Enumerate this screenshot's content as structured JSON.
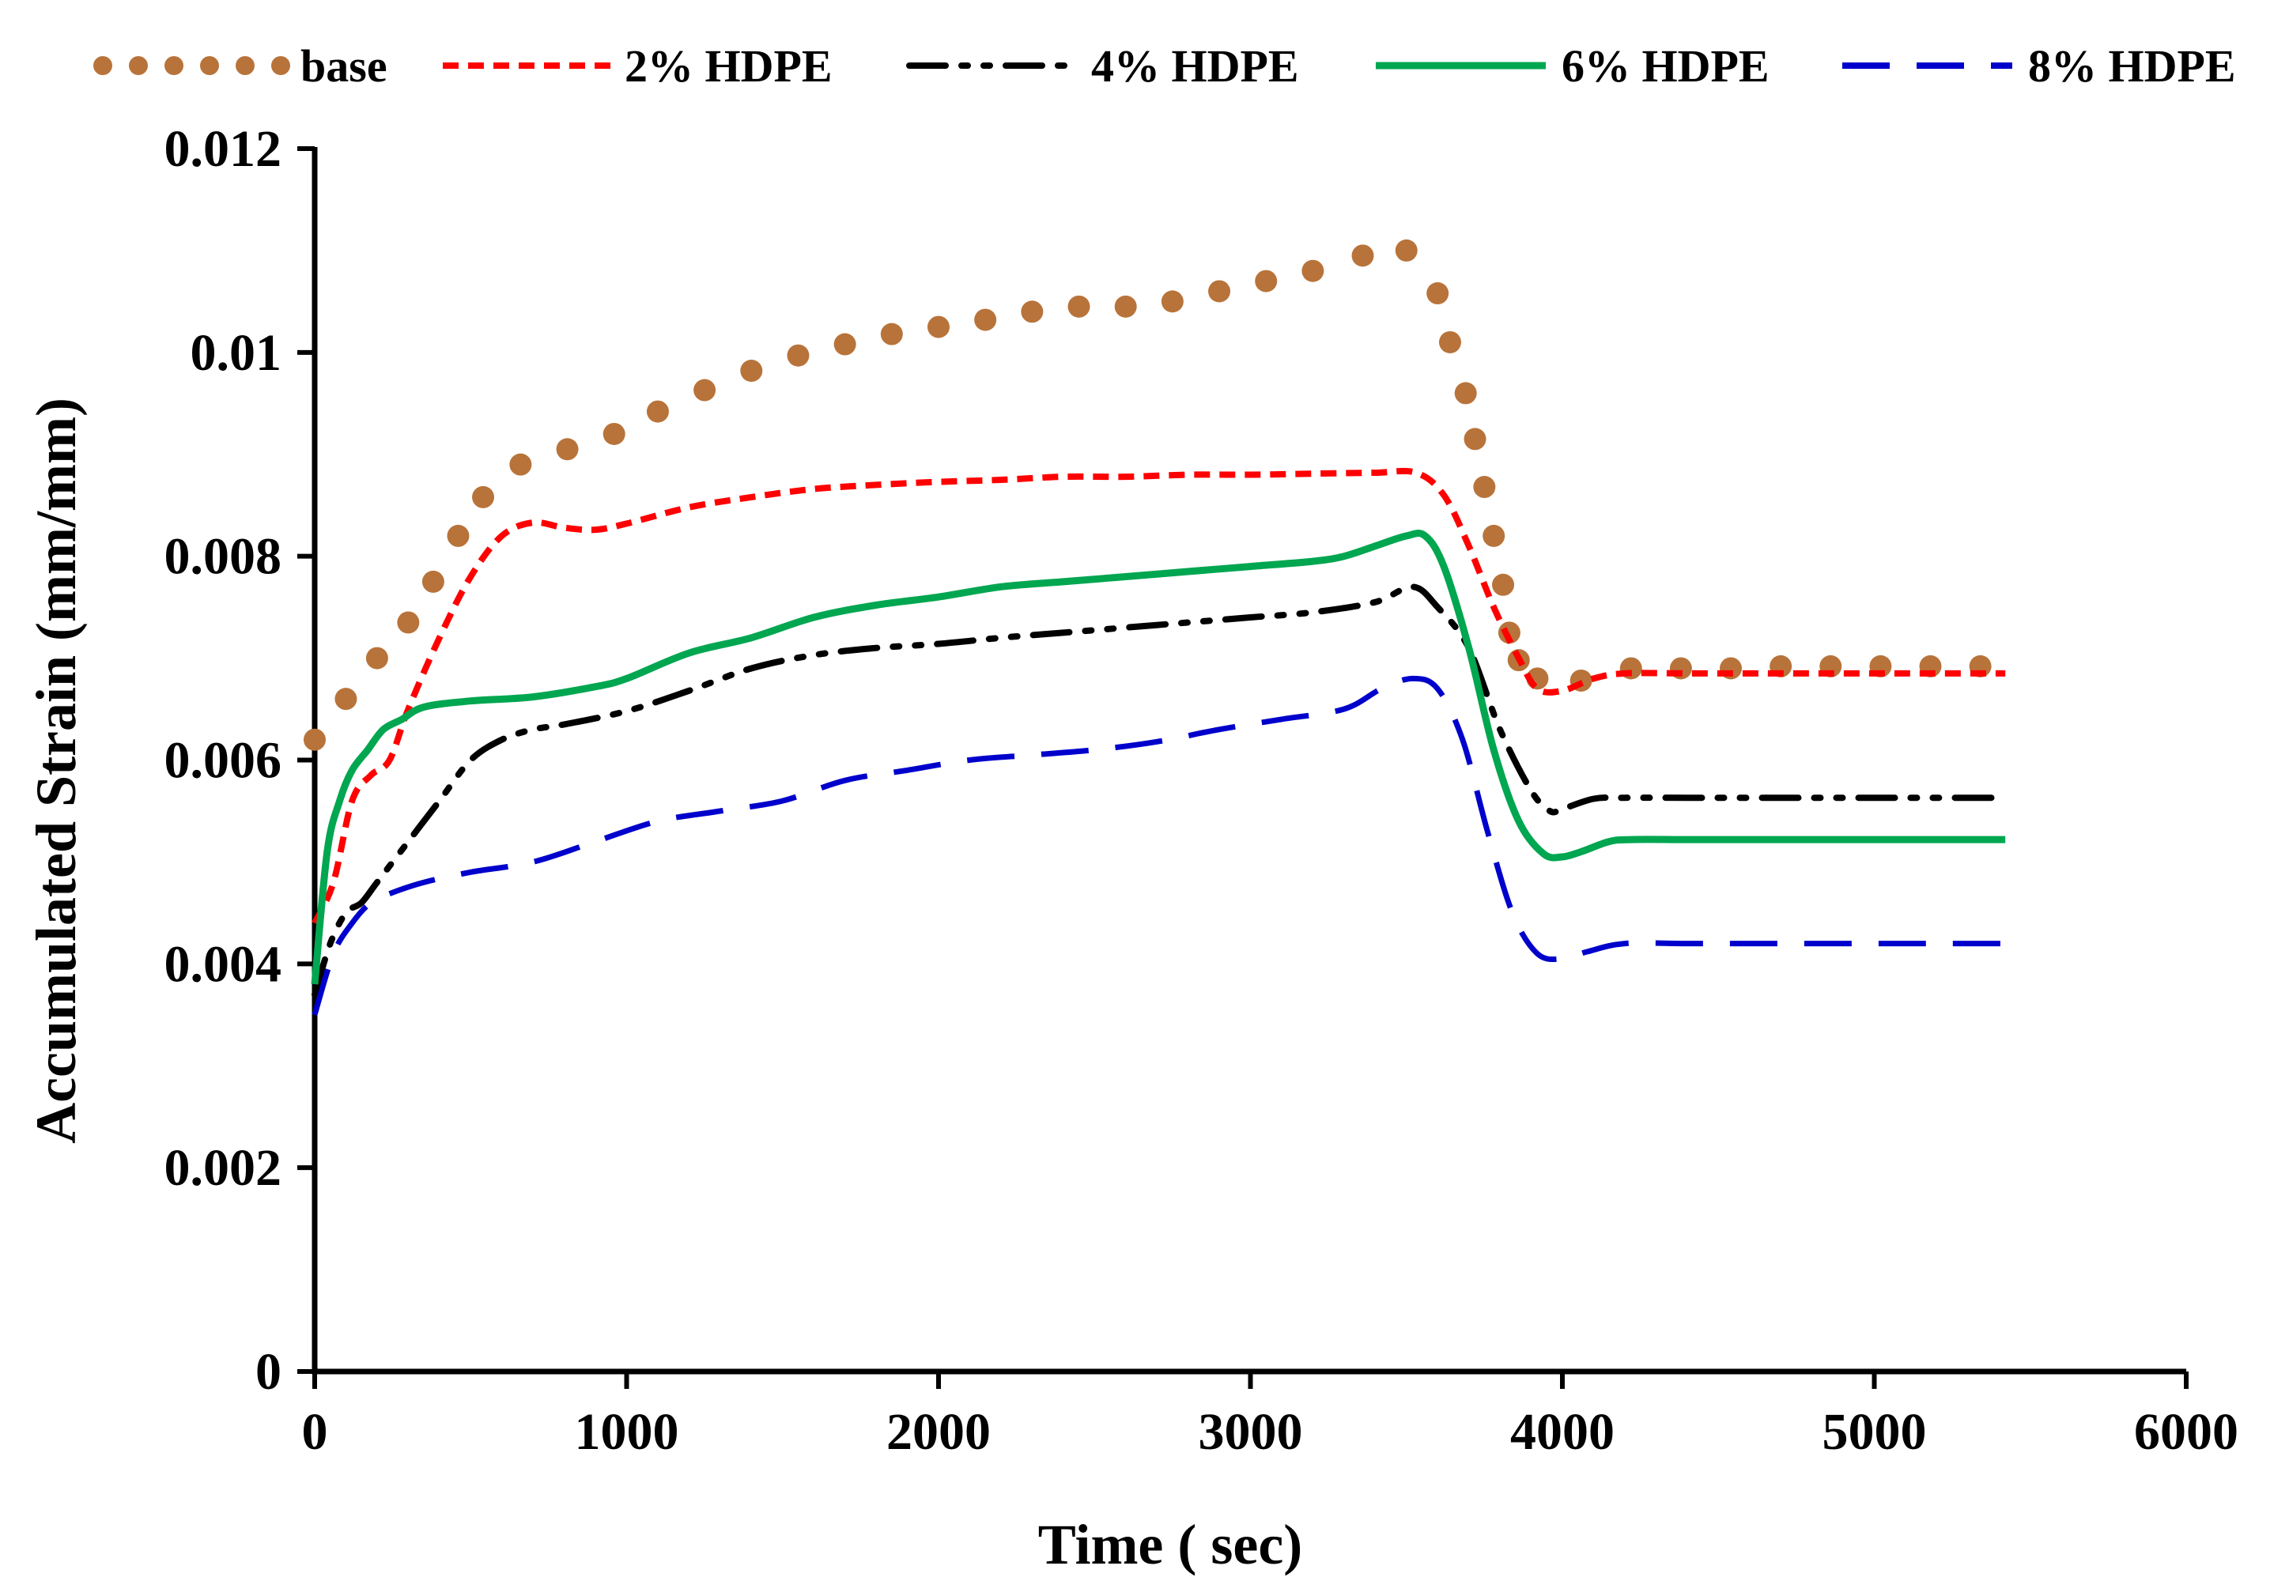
{
  "chart_data": {
    "type": "line",
    "title": "",
    "xlabel": "Time ( sec)",
    "ylabel": "Accumulated Strain (mm/mm)",
    "xlim": [
      0,
      6000
    ],
    "ylim": [
      0,
      0.012
    ],
    "xticks": [
      0,
      1000,
      2000,
      3000,
      4000,
      5000,
      6000
    ],
    "yticks": [
      0,
      0.002,
      0.004,
      0.006,
      0.008,
      0.01,
      0.012
    ],
    "xtick_labels": [
      "0",
      "1000",
      "2000",
      "3000",
      "4000",
      "5000",
      "6000"
    ],
    "ytick_labels": [
      "0",
      "0.002",
      "0.004",
      "0.006",
      "0.008",
      "0.01",
      "0.012"
    ],
    "grid": false,
    "legend_position": "top",
    "series": [
      {
        "name": "base",
        "color": "#B8733A",
        "style": "dotted-circles",
        "x": [
          0,
          100,
          200,
          300,
          380,
          460,
          540,
          660,
          810,
          960,
          1100,
          1250,
          1400,
          1550,
          1700,
          1850,
          2000,
          2150,
          2300,
          2450,
          2600,
          2750,
          2900,
          3050,
          3200,
          3360,
          3500,
          3600,
          3640,
          3690,
          3720,
          3750,
          3780,
          3810,
          3830,
          3860,
          3920,
          4060,
          4220,
          4380,
          4540,
          4700,
          4860,
          5020,
          5180,
          5340
        ],
        "y": [
          0.0062,
          0.0066,
          0.007,
          0.00735,
          0.00775,
          0.0082,
          0.00858,
          0.0089,
          0.00905,
          0.0092,
          0.00942,
          0.00963,
          0.00982,
          0.00997,
          0.01008,
          0.01018,
          0.01025,
          0.01032,
          0.0104,
          0.01045,
          0.01045,
          0.0105,
          0.0106,
          0.0107,
          0.0108,
          0.01095,
          0.011,
          0.01058,
          0.0101,
          0.0096,
          0.00915,
          0.00868,
          0.0082,
          0.00772,
          0.00725,
          0.00698,
          0.0068,
          0.00678,
          0.0069,
          0.0069,
          0.0069,
          0.00692,
          0.00692,
          0.00692,
          0.00692,
          0.00692
        ]
      },
      {
        "name": "2% HDPE",
        "color": "#FF0000",
        "style": "short-dash",
        "x": [
          0,
          60,
          120,
          180,
          240,
          300,
          400,
          500,
          600,
          700,
          800,
          900,
          1000,
          1200,
          1400,
          1600,
          1800,
          2000,
          2200,
          2400,
          2600,
          2800,
          3000,
          3200,
          3400,
          3530,
          3620,
          3700,
          3780,
          3860,
          3920,
          4000,
          4100,
          4200,
          4400,
          4600,
          4800,
          5000,
          5200,
          5420
        ],
        "y": [
          0.0044,
          0.0048,
          0.0056,
          0.00585,
          0.006,
          0.0065,
          0.0072,
          0.0078,
          0.0082,
          0.00833,
          0.00828,
          0.00826,
          0.00832,
          0.00848,
          0.00858,
          0.00866,
          0.0087,
          0.00873,
          0.00875,
          0.00878,
          0.00878,
          0.0088,
          0.0088,
          0.00881,
          0.00882,
          0.00882,
          0.0086,
          0.0081,
          0.0075,
          0.007,
          0.0067,
          0.00668,
          0.0068,
          0.00685,
          0.00685,
          0.00685,
          0.00685,
          0.00685,
          0.00685,
          0.00685
        ]
      },
      {
        "name": "4% HDPE",
        "color": "#000000",
        "style": "long-dash-dot-dot",
        "x": [
          0,
          50,
          100,
          150,
          200,
          300,
          400,
          500,
          600,
          700,
          800,
          1000,
          1200,
          1400,
          1600,
          1800,
          2000,
          2200,
          2400,
          2600,
          2800,
          3000,
          3200,
          3400,
          3520,
          3600,
          3700,
          3800,
          3900,
          3960,
          4000,
          4100,
          4200,
          4400,
          4600,
          4800,
          5000,
          5200,
          5420
        ],
        "y": [
          0.0037,
          0.0042,
          0.0045,
          0.0046,
          0.0048,
          0.0052,
          0.0056,
          0.006,
          0.0062,
          0.0063,
          0.00635,
          0.00648,
          0.00668,
          0.0069,
          0.00703,
          0.0071,
          0.00714,
          0.0072,
          0.00725,
          0.0073,
          0.00735,
          0.0074,
          0.00745,
          0.00755,
          0.0077,
          0.0075,
          0.0071,
          0.0063,
          0.0057,
          0.0055,
          0.00552,
          0.00562,
          0.00563,
          0.00563,
          0.00563,
          0.00563,
          0.00563,
          0.00563,
          0.00563
        ]
      },
      {
        "name": "6% HDPE",
        "color": "#00A650",
        "style": "solid",
        "x": [
          0,
          40,
          80,
          120,
          170,
          220,
          280,
          350,
          500,
          700,
          900,
          1000,
          1200,
          1400,
          1600,
          1800,
          2000,
          2200,
          2400,
          2600,
          2800,
          3000,
          3200,
          3300,
          3400,
          3500,
          3560,
          3620,
          3700,
          3780,
          3860,
          3940,
          4000,
          4060,
          4150,
          4220,
          4400,
          4600,
          4800,
          5000,
          5200,
          5420
        ],
        "y": [
          0.0038,
          0.0051,
          0.0056,
          0.0059,
          0.0061,
          0.0063,
          0.0064,
          0.00652,
          0.00658,
          0.00662,
          0.00672,
          0.0068,
          0.00705,
          0.0072,
          0.0074,
          0.00752,
          0.0076,
          0.0077,
          0.00775,
          0.0078,
          0.00785,
          0.0079,
          0.00795,
          0.008,
          0.0081,
          0.0082,
          0.0082,
          0.0079,
          0.0071,
          0.0061,
          0.0054,
          0.00508,
          0.00505,
          0.0051,
          0.0052,
          0.00522,
          0.00522,
          0.00522,
          0.00522,
          0.00522,
          0.00522,
          0.00522
        ]
      },
      {
        "name": "8% HDPE",
        "color": "#0000CC",
        "style": "long-dash",
        "x": [
          0,
          60,
          120,
          180,
          250,
          350,
          500,
          700,
          900,
          1100,
          1300,
          1500,
          1700,
          1900,
          2100,
          2300,
          2500,
          2700,
          2900,
          3100,
          3300,
          3420,
          3520,
          3600,
          3680,
          3760,
          3840,
          3920,
          4000,
          4080,
          4200,
          4400,
          4600,
          4800,
          5000,
          5200,
          5420
        ],
        "y": [
          0.0035,
          0.0041,
          0.0044,
          0.0046,
          0.0047,
          0.0048,
          0.0049,
          0.005,
          0.0052,
          0.0054,
          0.0055,
          0.0056,
          0.0058,
          0.0059,
          0.006,
          0.00605,
          0.0061,
          0.00618,
          0.0063,
          0.0064,
          0.0065,
          0.0067,
          0.0068,
          0.0067,
          0.0062,
          0.0053,
          0.0045,
          0.0041,
          0.00405,
          0.00412,
          0.0042,
          0.0042,
          0.0042,
          0.0042,
          0.0042,
          0.0042,
          0.0042
        ]
      }
    ]
  }
}
